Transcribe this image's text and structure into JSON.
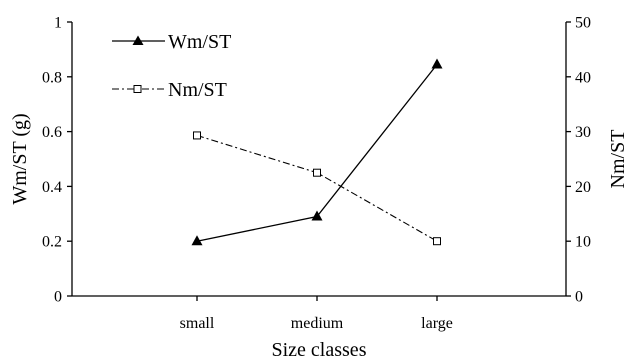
{
  "chart_data": {
    "type": "line",
    "categories": [
      "small",
      "medium",
      "large"
    ],
    "xlabel": "Size classes",
    "y_left": {
      "label": "Wm/ST (g)",
      "lim": [
        0,
        1
      ],
      "ticks": [
        "0",
        "0.2",
        "0.4",
        "0.6",
        "0.8",
        "1"
      ]
    },
    "y_right": {
      "label": "Nm/ST",
      "lim": [
        0,
        50
      ],
      "ticks": [
        "0",
        "10",
        "20",
        "30",
        "40",
        "50"
      ]
    },
    "series": [
      {
        "name": "Wm/ST",
        "axis": "left",
        "values": [
          0.2,
          0.29,
          0.845
        ],
        "line_style": "solid",
        "marker": "filled-triangle",
        "color": "#000000"
      },
      {
        "name": "Nm/ST",
        "axis": "right",
        "values": [
          29.3,
          22.5,
          10
        ],
        "line_style": "dash-dot",
        "marker": "open-square",
        "color": "#000000"
      }
    ],
    "legend": "top-left",
    "grid": false
  }
}
